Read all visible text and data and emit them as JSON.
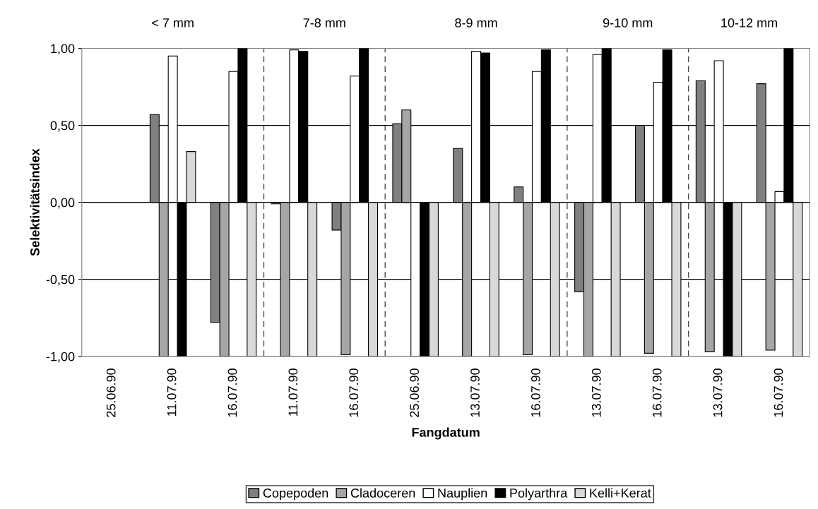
{
  "chart_data": {
    "type": "bar",
    "xlabel": "Fangdatum",
    "ylabel": "Selektivitätsindex",
    "categories": [
      "25.06.90",
      "11.07.90",
      "16.07.90",
      "11.07.90",
      "16.07.90",
      "25.06.90",
      "13.07.90",
      "16.07.90",
      "13.07.90",
      "16.07.90",
      "13.07.90",
      "16.07.90"
    ],
    "series": [
      {
        "name": "Copepoden",
        "color": "#808080",
        "values": [
          null,
          0.57,
          -0.78,
          -0.01,
          -0.18,
          0.51,
          0.35,
          0.1,
          -0.58,
          0.5,
          0.79,
          0.77
        ]
      },
      {
        "name": "Cladoceren",
        "color": "#a6a6a6",
        "values": [
          null,
          -1.0,
          -1.0,
          -1.0,
          -0.99,
          0.6,
          -1.0,
          -0.99,
          -1.0,
          -0.98,
          -0.97,
          -0.96
        ]
      },
      {
        "name": "Nauplien",
        "color": "#ffffff",
        "values": [
          null,
          0.95,
          0.85,
          0.99,
          0.82,
          -1.0,
          0.98,
          0.85,
          0.96,
          0.78,
          0.92,
          0.07
        ]
      },
      {
        "name": "Polyarthra",
        "color": "#000000",
        "values": [
          null,
          -1.0,
          1.0,
          0.98,
          1.0,
          -1.0,
          0.97,
          0.99,
          1.0,
          0.99,
          -1.0,
          1.0
        ]
      },
      {
        "name": "Kelli+Kerat",
        "color": "#d9d9d9",
        "values": [
          null,
          0.33,
          -1.0,
          -1.0,
          -1.0,
          -1.0,
          -1.0,
          -1.0,
          -1.0,
          -1.0,
          -1.0,
          -1.0
        ]
      }
    ],
    "ylim": [
      -1,
      1
    ],
    "yticks": [
      {
        "value": -1,
        "label": "-1,00"
      },
      {
        "value": -0.5,
        "label": "-0,50"
      },
      {
        "value": 0,
        "label": "0,00"
      },
      {
        "value": 0.5,
        "label": "0,50"
      },
      {
        "value": 1,
        "label": "1,00"
      }
    ],
    "annotations": [
      "< 7 mm",
      "7-8 mm",
      "8-9 mm",
      "9-10 mm",
      "10-12 mm"
    ],
    "grid": "y",
    "legend": "bottom"
  }
}
